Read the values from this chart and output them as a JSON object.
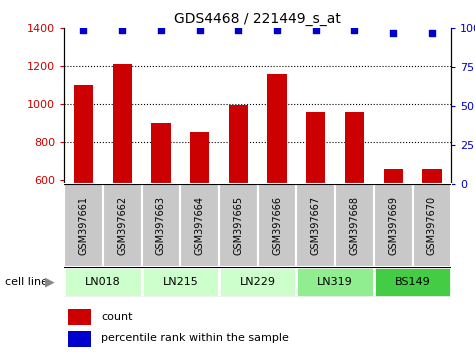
{
  "title": "GDS4468 / 221449_s_at",
  "samples": [
    "GSM397661",
    "GSM397662",
    "GSM397663",
    "GSM397664",
    "GSM397665",
    "GSM397666",
    "GSM397667",
    "GSM397668",
    "GSM397669",
    "GSM397670"
  ],
  "counts": [
    1100,
    1210,
    900,
    855,
    995,
    1158,
    960,
    960,
    658,
    660
  ],
  "percentile_ranks": [
    99,
    99,
    99,
    99,
    99,
    99,
    99,
    99,
    97,
    97
  ],
  "bar_color": "#cc0000",
  "dot_color": "#0000cc",
  "ylim_left": [
    580,
    1400
  ],
  "ylim_right": [
    0,
    100
  ],
  "yticks_left": [
    600,
    800,
    1000,
    1200,
    1400
  ],
  "yticks_right": [
    0,
    25,
    50,
    75,
    100
  ],
  "grid_lines": [
    800,
    1000,
    1200
  ],
  "cell_lines": [
    {
      "label": "LN018",
      "start": 0,
      "end": 1,
      "color": "#ccffcc"
    },
    {
      "label": "LN215",
      "start": 2,
      "end": 3,
      "color": "#ccffcc"
    },
    {
      "label": "LN229",
      "start": 4,
      "end": 5,
      "color": "#ccffcc"
    },
    {
      "label": "LN319",
      "start": 6,
      "end": 7,
      "color": "#90ee90"
    },
    {
      "label": "BS149",
      "start": 8,
      "end": 9,
      "color": "#44cc44"
    }
  ],
  "sample_box_color": "#c8c8c8",
  "cell_line_label": "cell line",
  "legend_count_label": "count",
  "legend_percentile_label": "percentile rank within the sample",
  "left_tick_color": "#cc0000",
  "right_tick_color": "#0000cc",
  "bar_width": 0.5
}
